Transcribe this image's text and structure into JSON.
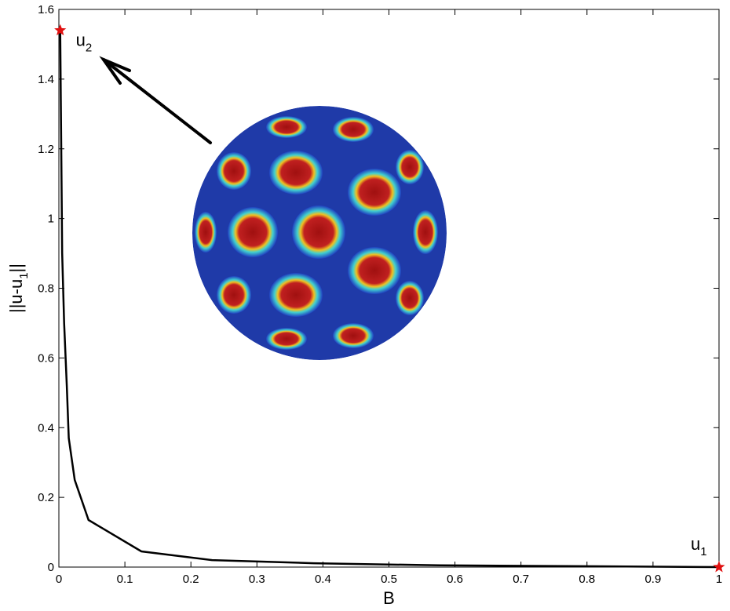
{
  "chart_data": {
    "type": "line",
    "xlabel": "B",
    "ylabel": {
      "text": "||u-u",
      "subscript": "1",
      "suffix": "||"
    },
    "annotations": [
      {
        "text": "u",
        "subscript": "2",
        "x": 0.002,
        "y": 1.54
      },
      {
        "text": "u",
        "subscript": "1",
        "x": 1,
        "y": 0
      }
    ],
    "series": [
      {
        "x": [
          0.002,
          0.005,
          0.008,
          0.012,
          0.015,
          0.024,
          0.045,
          0.125,
          0.232,
          0.386,
          0.577,
          1
        ],
        "values": [
          1.54,
          0.9,
          0.7,
          0.52,
          0.37,
          0.25,
          0.135,
          0.045,
          0.02,
          0.011,
          0.005,
          0
        ],
        "color": "#000000"
      },
      {
        "x": [
          0.002,
          1
        ],
        "values": [
          1.54,
          0
        ],
        "color": "#e01010",
        "marker": "star"
      }
    ],
    "xlim": [
      0,
      1
    ],
    "xticks": [
      0,
      0.1,
      0.2,
      0.3,
      0.4,
      0.5,
      0.6,
      0.7,
      0.8,
      0.9,
      1
    ],
    "ylim": [
      0,
      1.6
    ],
    "yticks": [
      0,
      0.2,
      0.4,
      0.6,
      0.8,
      1,
      1.2,
      1.4,
      1.6
    ]
  }
}
